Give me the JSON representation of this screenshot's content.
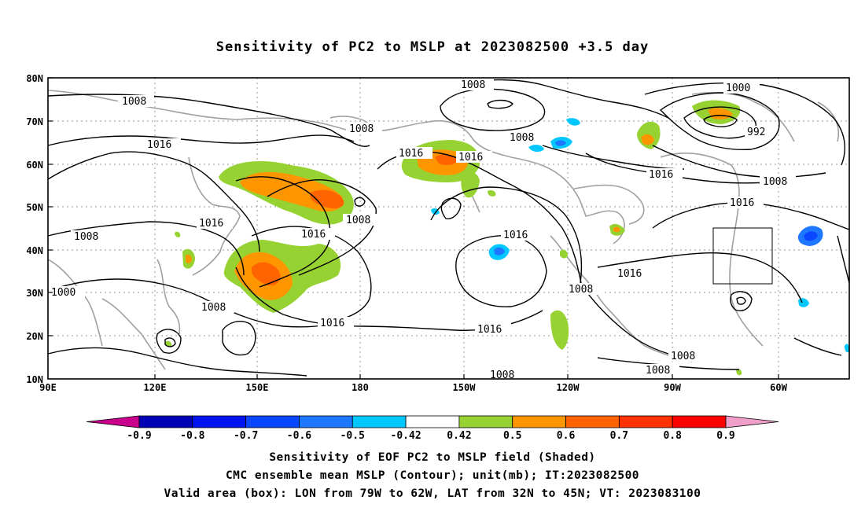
{
  "title": "Sensitivity of PC2 to MSLP at 2023082500 +3.5 day",
  "lat_labels": [
    "80N",
    "70N",
    "60N",
    "50N",
    "40N",
    "30N",
    "20N",
    "10N"
  ],
  "lon_labels": [
    "90E",
    "120E",
    "150E",
    "180",
    "150W",
    "120W",
    "90W",
    "60W"
  ],
  "isobar_labels": [
    "1008",
    "1016",
    "1000",
    "992"
  ],
  "colorbar": {
    "tick_labels": [
      "-0.9",
      "-0.8",
      "-0.7",
      "-0.6",
      "-0.5",
      "-0.42",
      "0.42",
      "0.5",
      "0.6",
      "0.7",
      "0.8",
      "0.9"
    ],
    "colors": [
      "#c8008c",
      "#0000b4",
      "#0014f0",
      "#0a46ff",
      "#1e78ff",
      "#00c8ff",
      "#ffffff",
      "#96d232",
      "#ff9600",
      "#ff6400",
      "#ff3200",
      "#ff0000",
      "#f0a0c8"
    ]
  },
  "captions": {
    "line1": "Sensitivity of EOF PC2 to MSLP field (Shaded)",
    "line2": "CMC ensemble mean MSLP (Contour); unit(mb); IT:2023082500",
    "line3": "Valid area (box): LON from 79W to 62W, LAT from 32N to 45N; VT: 2023083100"
  }
}
